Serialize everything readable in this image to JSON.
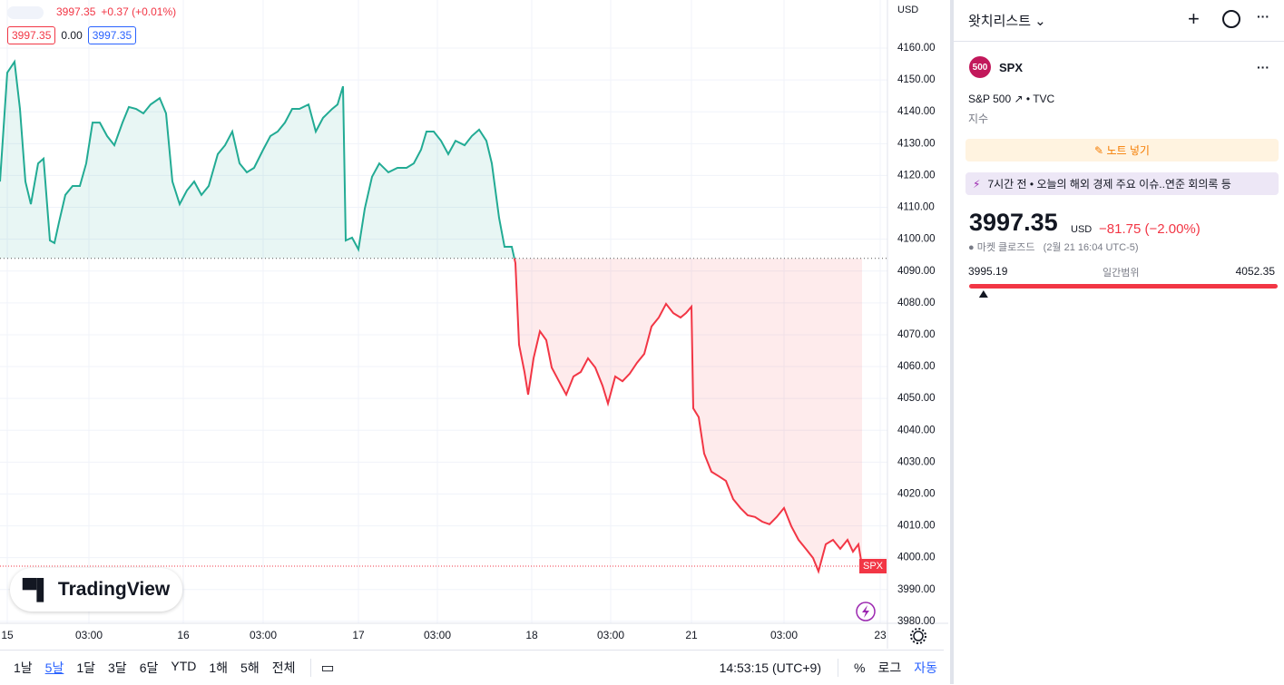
{
  "header": {
    "symbol_price": "3997.35",
    "symbol_change": "+0.37 (+0.01%)",
    "bid": "3997.35",
    "spread": "0.00",
    "ask": "3997.35"
  },
  "chart_data": {
    "type": "line",
    "currency": "USD",
    "symbol_tag": "SPX",
    "x": [
      0,
      8,
      16,
      22,
      28,
      34,
      42,
      48,
      55,
      60,
      65,
      72,
      80,
      88,
      95,
      102,
      110,
      118,
      126,
      135,
      142,
      150,
      158,
      166,
      176,
      183,
      190,
      198,
      206,
      214,
      222,
      230,
      240,
      248,
      256,
      264,
      272,
      280,
      290,
      298,
      306,
      314,
      322,
      330,
      340,
      348,
      356,
      366,
      372,
      378,
      381,
      388,
      395,
      402,
      410,
      418,
      428,
      438,
      448,
      456,
      464,
      470,
      478,
      486,
      494,
      502,
      512,
      520,
      528,
      536,
      542,
      550,
      556,
      564,
      568,
      572,
      578,
      582,
      588,
      595,
      602,
      608,
      616,
      624,
      632,
      640,
      648,
      656,
      664,
      670,
      678,
      686,
      694,
      702,
      710,
      718,
      726,
      734,
      742,
      750,
      756,
      762,
      764,
      770,
      776,
      784,
      792,
      800,
      808,
      816,
      824,
      832,
      840,
      848,
      856,
      864,
      872,
      880,
      888,
      896,
      902,
      910,
      918,
      926,
      934,
      940,
      946,
      950
    ],
    "values": [
      4118.1,
      4152.3,
      4155.7,
      4140.9,
      4118.1,
      4111.0,
      4123.8,
      4125.3,
      4099.6,
      4098.8,
      4105.3,
      4113.9,
      4116.7,
      4116.7,
      4123.8,
      4136.6,
      4136.6,
      4132.4,
      4129.5,
      4136.6,
      4141.5,
      4140.9,
      4139.5,
      4142.3,
      4144.3,
      4139.5,
      4118.1,
      4111.0,
      4115.3,
      4118.1,
      4113.9,
      4116.7,
      4126.7,
      4129.5,
      4133.8,
      4123.8,
      4121.0,
      4122.4,
      4128.1,
      4132.4,
      4133.8,
      4136.6,
      4140.9,
      4140.9,
      4142.3,
      4133.8,
      4138.1,
      4140.9,
      4142.3,
      4148.0,
      4099.6,
      4100.5,
      4096.8,
      4109.6,
      4119.6,
      4123.8,
      4121.0,
      4122.4,
      4122.4,
      4123.8,
      4128.1,
      4133.8,
      4133.8,
      4130.9,
      4126.7,
      4130.9,
      4129.5,
      4132.4,
      4134.4,
      4130.9,
      4123.8,
      4106.7,
      4097.6,
      4097.6,
      4092.5,
      4066.9,
      4058.3,
      4051.2,
      4062.6,
      4071.1,
      4068.3,
      4059.7,
      4055.4,
      4051.2,
      4056.9,
      4058.3,
      4062.6,
      4059.7,
      4054.0,
      4048.4,
      4056.9,
      4055.4,
      4057.8,
      4061.2,
      4064.0,
      4072.6,
      4075.4,
      4079.7,
      4076.8,
      4075.4,
      4076.8,
      4078.8,
      4046.9,
      4044.1,
      4032.7,
      4027.0,
      4025.6,
      4024.1,
      4018.4,
      4015.6,
      4013.3,
      4012.8,
      4011.3,
      4010.5,
      4012.8,
      4015.6,
      4009.9,
      4005.6,
      4002.8,
      3999.9,
      3995.7,
      4004.2,
      4005.6,
      4002.8,
      4005.6,
      4001.9,
      4004.2,
      3997.35
    ],
    "baseline": 4094,
    "above_color": "#22ab94",
    "below_color": "#f23645",
    "xlim": [
      0,
      978
    ],
    "xticks": [
      {
        "value": 8,
        "label": "15"
      },
      {
        "value": 98,
        "label": "03:00"
      },
      {
        "value": 202,
        "label": "16"
      },
      {
        "value": 290,
        "label": "03:00"
      },
      {
        "value": 395,
        "label": "17"
      },
      {
        "value": 482,
        "label": "03:00"
      },
      {
        "value": 586,
        "label": "18"
      },
      {
        "value": 673,
        "label": "03:00"
      },
      {
        "value": 762,
        "label": "21"
      },
      {
        "value": 864,
        "label": "03:00"
      },
      {
        "value": 970,
        "label": "23"
      }
    ],
    "ylim": [
      3979.4,
      4175.1
    ],
    "yticks": [
      {
        "value": 4160,
        "label": "4160.00"
      },
      {
        "value": 4150,
        "label": "4150.00"
      },
      {
        "value": 4140,
        "label": "4140.00"
      },
      {
        "value": 4130,
        "label": "4130.00"
      },
      {
        "value": 4120,
        "label": "4120.00"
      },
      {
        "value": 4110,
        "label": "4110.00"
      },
      {
        "value": 4100,
        "label": "4100.00"
      },
      {
        "value": 4090,
        "label": "4090.00"
      },
      {
        "value": 4080,
        "label": "4080.00"
      },
      {
        "value": 4070,
        "label": "4070.00"
      },
      {
        "value": 4060,
        "label": "4060.00"
      },
      {
        "value": 4050,
        "label": "4050.00"
      },
      {
        "value": 4040,
        "label": "4040.00"
      },
      {
        "value": 4030,
        "label": "4030.00"
      },
      {
        "value": 4020,
        "label": "4020.00"
      },
      {
        "value": 4010,
        "label": "4010.00"
      },
      {
        "value": 4000,
        "label": "4000.00"
      },
      {
        "value": 3990,
        "label": "3990.00"
      },
      {
        "value": 3980,
        "label": "3980.00"
      }
    ],
    "grid": true,
    "watermark": "TradingView"
  },
  "toolbar": {
    "ranges": [
      "1날",
      "5날",
      "1달",
      "3달",
      "6달",
      "YTD",
      "1해",
      "5해",
      "전체"
    ],
    "time": "14:53:15 (UTC+9)",
    "percent": "%",
    "log": "로그",
    "auto": "자동"
  },
  "watchlist": {
    "title": "왓치리스트",
    "badge": "500",
    "symbol": "SPX",
    "name": "S&P 500",
    "source": "TVC",
    "kind": "지수",
    "note_button": "노트 넣기",
    "news_time": "7시간 전",
    "news_text": "오늘의 해외 경제 주요 이슈..연준 회의록 등",
    "price": 3997.35,
    "currency": "USD",
    "change": "−81.75 (−2.00%)",
    "status": "마켓 클로즈드",
    "status_time": "(2월 21 16:04 UTC-5)",
    "day_range": {
      "low": 3995.19,
      "label": "일간범위",
      "high": 4052.35
    }
  }
}
